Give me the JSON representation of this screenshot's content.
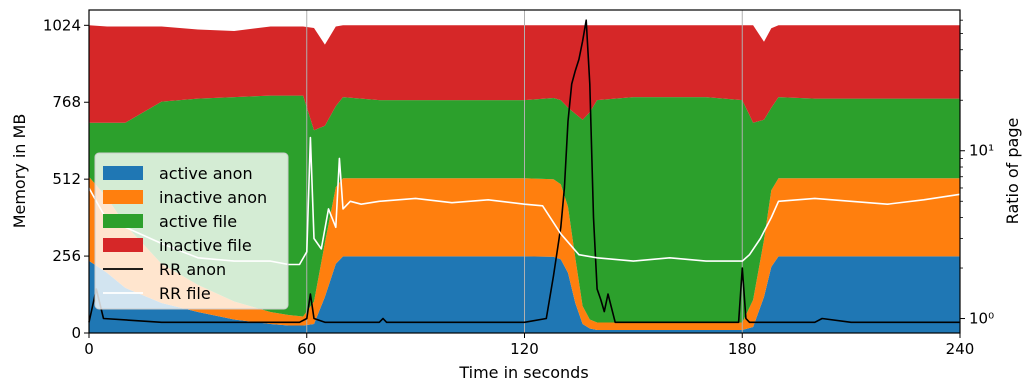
{
  "chart_data": {
    "type": "area",
    "title": "",
    "xlabel": "Time in seconds",
    "ylabel": "Memory in MB",
    "y2label": "Ratio of page",
    "xlim": [
      0,
      240
    ],
    "ylim": [
      0,
      1075
    ],
    "y2lim": [
      0.82,
      69
    ],
    "y2scale": "log",
    "x_ticks": [
      0,
      60,
      120,
      180,
      240
    ],
    "y_ticks": [
      0,
      256,
      512,
      768,
      1024
    ],
    "y2_ticks": [
      {
        "value": 1,
        "label": "10⁰"
      },
      {
        "value": 10,
        "label": "10¹"
      }
    ],
    "vertical_grid": [
      60,
      120,
      180
    ],
    "legend_position": "lower-left",
    "stacked_series": [
      {
        "name": "active anon",
        "color": "#1f77b4",
        "x": [
          0,
          5,
          10,
          20,
          30,
          40,
          50,
          55,
          59,
          62,
          65,
          68,
          70,
          80,
          100,
          120,
          128,
          130,
          132,
          134,
          136,
          138,
          140,
          150,
          160,
          170,
          180,
          183,
          186,
          188,
          190,
          200,
          220,
          240
        ],
        "values": [
          240,
          200,
          150,
          100,
          70,
          45,
          30,
          25,
          25,
          30,
          120,
          230,
          255,
          255,
          255,
          255,
          254,
          245,
          200,
          100,
          30,
          15,
          10,
          10,
          10,
          10,
          10,
          20,
          120,
          220,
          255,
          255,
          255,
          255
        ]
      },
      {
        "name": "inactive anon",
        "color": "#ff7f0e",
        "x": [
          0,
          5,
          10,
          20,
          30,
          40,
          50,
          55,
          59,
          62,
          65,
          68,
          70,
          80,
          100,
          120,
          128,
          130,
          132,
          134,
          136,
          138,
          140,
          150,
          160,
          170,
          180,
          183,
          186,
          188,
          190,
          200,
          220,
          240
        ],
        "values": [
          280,
          250,
          210,
          130,
          90,
          60,
          40,
          35,
          30,
          75,
          180,
          255,
          260,
          260,
          260,
          260,
          258,
          250,
          220,
          150,
          60,
          30,
          25,
          25,
          25,
          25,
          25,
          90,
          190,
          255,
          260,
          260,
          260,
          260
        ]
      },
      {
        "name": "active file",
        "color": "#2ca02c",
        "x": [
          0,
          5,
          10,
          20,
          30,
          40,
          50,
          55,
          59,
          62,
          65,
          68,
          70,
          80,
          100,
          120,
          128,
          130,
          132,
          134,
          136,
          138,
          140,
          150,
          160,
          170,
          180,
          183,
          186,
          188,
          190,
          200,
          220,
          240
        ],
        "values": [
          180,
          250,
          340,
          540,
          620,
          680,
          720,
          730,
          735,
          570,
          390,
          270,
          270,
          260,
          260,
          260,
          270,
          280,
          330,
          480,
          620,
          690,
          740,
          750,
          750,
          750,
          740,
          590,
          400,
          275,
          270,
          265,
          265,
          265
        ]
      },
      {
        "name": "inactive file",
        "color": "#d62728",
        "x": [
          0,
          5,
          10,
          20,
          30,
          40,
          50,
          55,
          59,
          62,
          65,
          68,
          70,
          80,
          100,
          120,
          128,
          130,
          132,
          134,
          136,
          138,
          140,
          150,
          160,
          170,
          180,
          183,
          186,
          188,
          190,
          200,
          220,
          240
        ],
        "values": [
          324,
          320,
          320,
          250,
          230,
          220,
          230,
          230,
          230,
          340,
          270,
          265,
          239,
          249,
          249,
          249,
          242,
          249,
          274,
          294,
          314,
          289,
          249,
          239,
          239,
          239,
          249,
          324,
          259,
          264,
          239,
          244,
          244,
          244
        ]
      }
    ],
    "line_series": [
      {
        "name": "RR anon",
        "color": "#000000",
        "axis": "right",
        "x": [
          0,
          2,
          4,
          20,
          40,
          58,
          60,
          61,
          62,
          65,
          70,
          80,
          81,
          82,
          100,
          110,
          120,
          126,
          128,
          130,
          131,
          132,
          133,
          134,
          135,
          136,
          137,
          138,
          139,
          140,
          141,
          142,
          143,
          145,
          150,
          170,
          179,
          180,
          181,
          182,
          184,
          190,
          200,
          202,
          210,
          220,
          240
        ],
        "values": [
          0.95,
          1.5,
          1.0,
          0.95,
          0.95,
          0.95,
          1.0,
          1.4,
          1.0,
          0.95,
          0.95,
          0.95,
          1.0,
          0.95,
          0.95,
          0.95,
          0.95,
          1.0,
          1.8,
          3.5,
          6.0,
          15.0,
          25.0,
          30.0,
          35.0,
          45.0,
          60.0,
          25.0,
          4.0,
          1.5,
          1.3,
          1.1,
          1.4,
          0.95,
          0.95,
          0.95,
          0.95,
          2.0,
          1.0,
          0.95,
          0.95,
          0.95,
          0.95,
          1.0,
          0.95,
          0.95,
          0.95
        ]
      },
      {
        "name": "RR file",
        "color": "#ffffff",
        "axis": "right",
        "x": [
          0,
          2,
          4,
          6,
          8,
          10,
          20,
          30,
          40,
          50,
          55,
          58,
          60,
          61,
          62,
          64,
          66,
          68,
          69,
          70,
          72,
          75,
          80,
          90,
          100,
          110,
          120,
          125,
          130,
          135,
          140,
          150,
          160,
          170,
          180,
          182,
          185,
          188,
          190,
          200,
          210,
          220,
          230,
          240
        ],
        "values": [
          6.0,
          5.0,
          4.2,
          3.8,
          4.0,
          3.5,
          2.8,
          2.3,
          2.2,
          2.2,
          2.1,
          2.1,
          2.5,
          12.0,
          3.0,
          2.6,
          4.5,
          3.5,
          9.0,
          4.5,
          5.0,
          4.8,
          5.0,
          5.2,
          4.9,
          5.1,
          4.8,
          4.7,
          3.2,
          2.4,
          2.3,
          2.2,
          2.3,
          2.2,
          2.2,
          2.4,
          3.0,
          4.0,
          5.0,
          5.2,
          5.0,
          4.8,
          5.1,
          5.5
        ]
      }
    ]
  }
}
